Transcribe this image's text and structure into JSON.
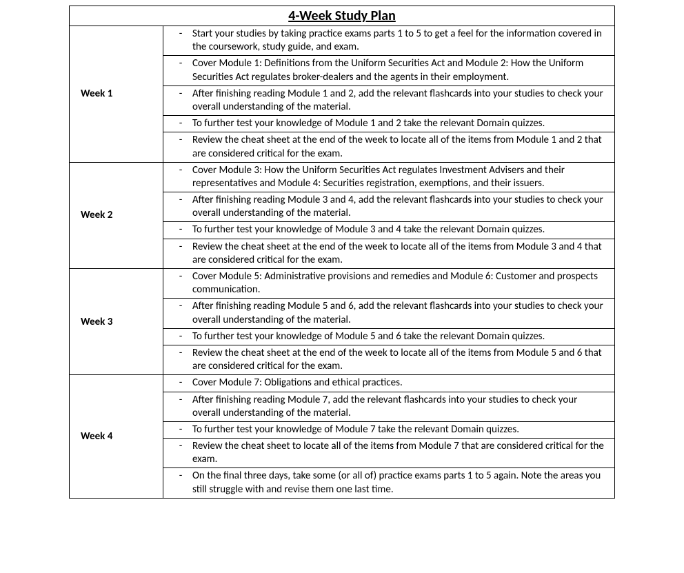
{
  "title": "4-Week Study Plan",
  "bullet": "-",
  "weeks": [
    {
      "label": "Week 1",
      "tasks": [
        "Start your studies by taking practice exams parts 1 to 5 to get a feel for the information covered in the coursework, study guide, and exam.",
        "Cover Module 1: Definitions from the Uniform Securities Act and Module 2: How the Uniform Securities Act regulates broker-dealers and the agents in their employment.",
        "After finishing reading Module 1 and 2, add the relevant flashcards into your studies to check your overall understanding of the material.",
        "To further test your knowledge of Module 1 and 2 take the relevant Domain quizzes.",
        "Review the cheat sheet at the end of the week to locate all of the items from Module 1 and 2 that are considered critical for the exam."
      ]
    },
    {
      "label": "Week 2",
      "tasks": [
        "Cover Module 3: How the Uniform Securities Act regulates Investment Advisers and their representatives and Module 4: Securities registration, exemptions, and their issuers.",
        "After finishing reading Module 3 and 4, add the relevant flashcards into your studies to check your overall understanding of the material.",
        "To further test your knowledge of Module 3 and 4 take the relevant Domain quizzes.",
        "Review the cheat sheet at the end of the week to locate all of the items from Module 3 and 4 that are considered critical for the exam."
      ]
    },
    {
      "label": "Week 3",
      "tasks": [
        "Cover Module 5: Administrative provisions and remedies and Module 6: Customer and prospects communication.",
        "After finishing reading Module 5 and 6, add the relevant flashcards into your studies to check your overall understanding of the material.",
        "To further test your knowledge of Module 5 and 6 take the relevant Domain quizzes.",
        "Review the cheat sheet at the end of the week to locate all of the items from Module 5 and 6 that are considered critical for the exam."
      ]
    },
    {
      "label": "Week 4",
      "tasks": [
        "Cover Module 7: Obligations and ethical practices.",
        "After finishing reading Module 7, add the relevant flashcards into your studies to check your overall understanding of the material.",
        "To further test your knowledge of Module 7 take the relevant Domain quizzes.",
        "Review the cheat sheet to locate all of the items from Module 7 that are considered critical for the exam.",
        "On the final three days, take some (or all of) practice exams parts 1 to 5 again. Note the areas you still struggle with and revise them one last time."
      ]
    }
  ]
}
